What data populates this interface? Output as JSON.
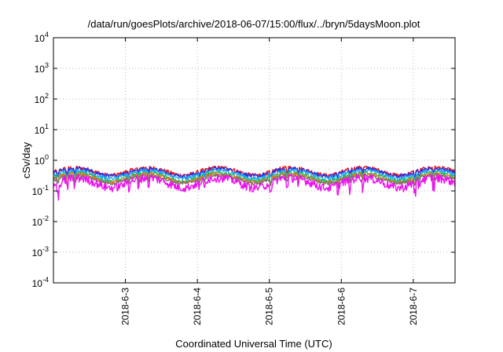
{
  "chart_data": {
    "type": "line",
    "title": "/data/run/goesPlots/archive/2018-06-07/15:00/flux/../bryn/5daysMoon.plot",
    "xlabel": "Coordinated Universal Time (UTC)",
    "ylabel": "cSv/day",
    "yscale": "log",
    "ylim": [
      0.0001,
      10000
    ],
    "xlim": [
      0.0,
      5.58
    ],
    "x_tick_positions": [
      1,
      2,
      3,
      4,
      5
    ],
    "x_tick_labels": [
      "2018-6-3",
      "2018-6-4",
      "2018-6-5",
      "2018-6-6",
      "2018-6-7"
    ],
    "y_ticks": [
      {
        "base": "10",
        "exp": "-4"
      },
      {
        "base": "10",
        "exp": "-3"
      },
      {
        "base": "10",
        "exp": "-2"
      },
      {
        "base": "10",
        "exp": "-1"
      },
      {
        "base": "10",
        "exp": "0"
      },
      {
        "base": "10",
        "exp": "1"
      },
      {
        "base": "10",
        "exp": "2"
      },
      {
        "base": "10",
        "exp": "3"
      },
      {
        "base": "10",
        "exp": "4"
      }
    ],
    "grid": true,
    "series": [
      {
        "color": "#ee1111",
        "base": 0.45,
        "amp": 0.14,
        "dip": 0.25,
        "noise": 0.05
      },
      {
        "color": "#2233ee",
        "base": 0.42,
        "amp": 0.13,
        "dip": 0.26,
        "noise": 0.05
      },
      {
        "color": "#22aaee",
        "base": 0.36,
        "amp": 0.12,
        "dip": 0.27,
        "noise": 0.05
      },
      {
        "color": "#22bb55",
        "base": 0.3,
        "amp": 0.1,
        "dip": 0.28,
        "noise": 0.04
      },
      {
        "color": "#ee7711",
        "base": 0.27,
        "amp": 0.09,
        "dip": 0.28,
        "noise": 0.04
      },
      {
        "color": "#777777",
        "base": 0.25,
        "amp": 0.08,
        "dip": 0.3,
        "noise": 0.04
      },
      {
        "color": "#ee11ee",
        "base": 0.2,
        "amp": 0.08,
        "dip": 0.45,
        "noise": 0.1
      }
    ]
  }
}
